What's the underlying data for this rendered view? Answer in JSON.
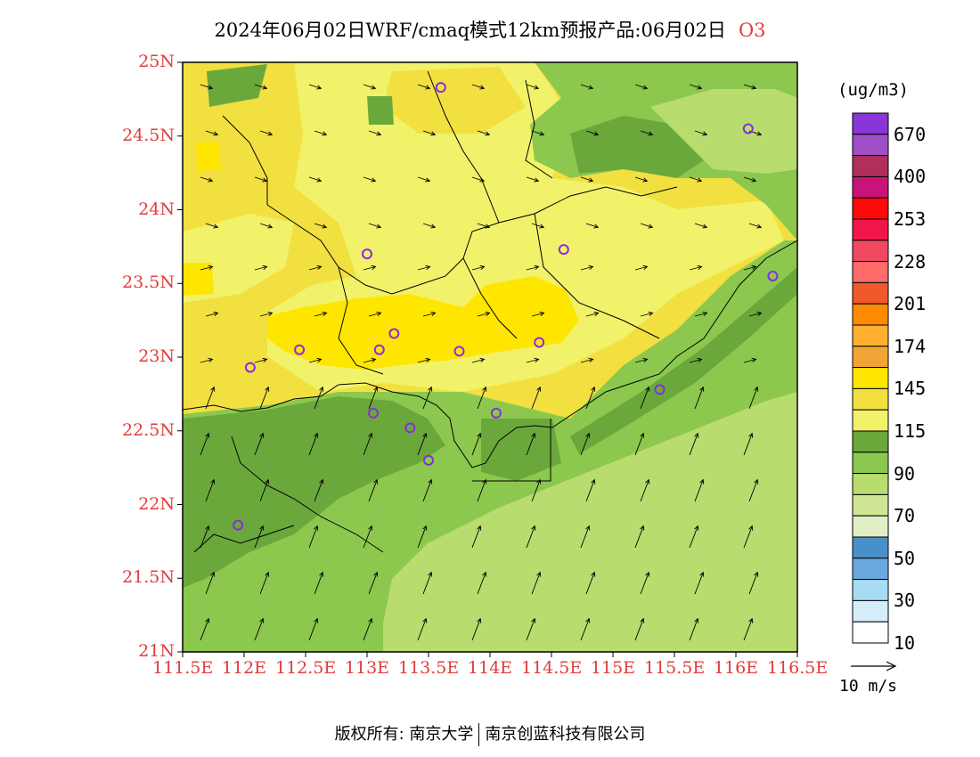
{
  "title": {
    "main": "2024年06月02日WRF/cmaq模式12km预报产品:06月02日",
    "pollutant": "O3"
  },
  "axes": {
    "lat_ticks": [
      "25N",
      "24.5N",
      "24N",
      "23.5N",
      "23N",
      "22.5N",
      "22N",
      "21.5N",
      "21N"
    ],
    "lon_ticks": [
      "111.5E",
      "112E",
      "112.5E",
      "113E",
      "113.5E",
      "114E",
      "114.5E",
      "115E",
      "115.5E",
      "116E",
      "116.5E"
    ],
    "lon_range": [
      111.5,
      116.5
    ],
    "lat_range": [
      21,
      25
    ],
    "tick_color": "#e33b3b"
  },
  "legend": {
    "unit": "(ug/m3)",
    "labels": [
      "670",
      "400",
      "253",
      "228",
      "201",
      "174",
      "145",
      "115",
      "90",
      "70",
      "50",
      "30",
      "10"
    ],
    "colors_top_to_bottom": [
      "#8a35d8",
      "#a04fc6",
      "#b0305a",
      "#c8147a",
      "#ff0a0a",
      "#f0164a",
      "#f04860",
      "#ff6a6a",
      "#f05a2a",
      "#ff8c00",
      "#ffb030",
      "#f3a437",
      "#ffe600",
      "#f2e040",
      "#f1f26a",
      "#6aa83c",
      "#8cc84e",
      "#b8dc6e",
      "#cfe694",
      "#e2eec6",
      "#4a90c8",
      "#6aa8e0",
      "#a8dcf4",
      "#d4eefa",
      "#ffffff"
    ]
  },
  "wind_reference": {
    "label": "10 m/s"
  },
  "stations": [
    {
      "lon": 113.6,
      "lat": 24.83
    },
    {
      "lon": 116.1,
      "lat": 24.55
    },
    {
      "lon": 114.6,
      "lat": 23.73
    },
    {
      "lon": 113.0,
      "lat": 23.7
    },
    {
      "lon": 116.3,
      "lat": 23.55
    },
    {
      "lon": 113.22,
      "lat": 23.16
    },
    {
      "lon": 112.45,
      "lat": 23.05
    },
    {
      "lon": 113.1,
      "lat": 23.05
    },
    {
      "lon": 113.75,
      "lat": 23.04
    },
    {
      "lon": 114.4,
      "lat": 23.1
    },
    {
      "lon": 112.05,
      "lat": 22.93
    },
    {
      "lon": 115.38,
      "lat": 22.78
    },
    {
      "lon": 113.05,
      "lat": 22.62
    },
    {
      "lon": 113.35,
      "lat": 22.52
    },
    {
      "lon": 114.05,
      "lat": 22.62
    },
    {
      "lon": 113.5,
      "lat": 22.3
    },
    {
      "lon": 111.95,
      "lat": 21.86
    }
  ],
  "footer": {
    "left": "版权所有: 南京大学",
    "right": "南京创蓝科技有限公司"
  }
}
